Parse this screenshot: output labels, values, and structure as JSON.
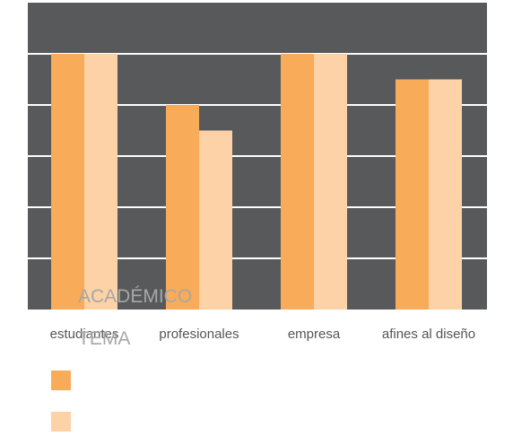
{
  "chart_data": {
    "type": "bar",
    "categories": [
      "estudiantes",
      "profesionales",
      "empresa",
      "afines al diseño"
    ],
    "series": [
      {
        "color": "#f8ab58",
        "values": [
          5,
          4,
          5,
          4.5
        ]
      },
      {
        "color": "#fdd2a6",
        "values": [
          5,
          3.5,
          5,
          4.5
        ]
      }
    ],
    "ylim": [
      0,
      6
    ],
    "grid": true,
    "plot_background": "#58595b",
    "gridline_color": "#ffffff",
    "overlay_labels": [
      "ACADÉMICO",
      "TEMA"
    ],
    "legend": {
      "placement": "bottom-left"
    }
  }
}
